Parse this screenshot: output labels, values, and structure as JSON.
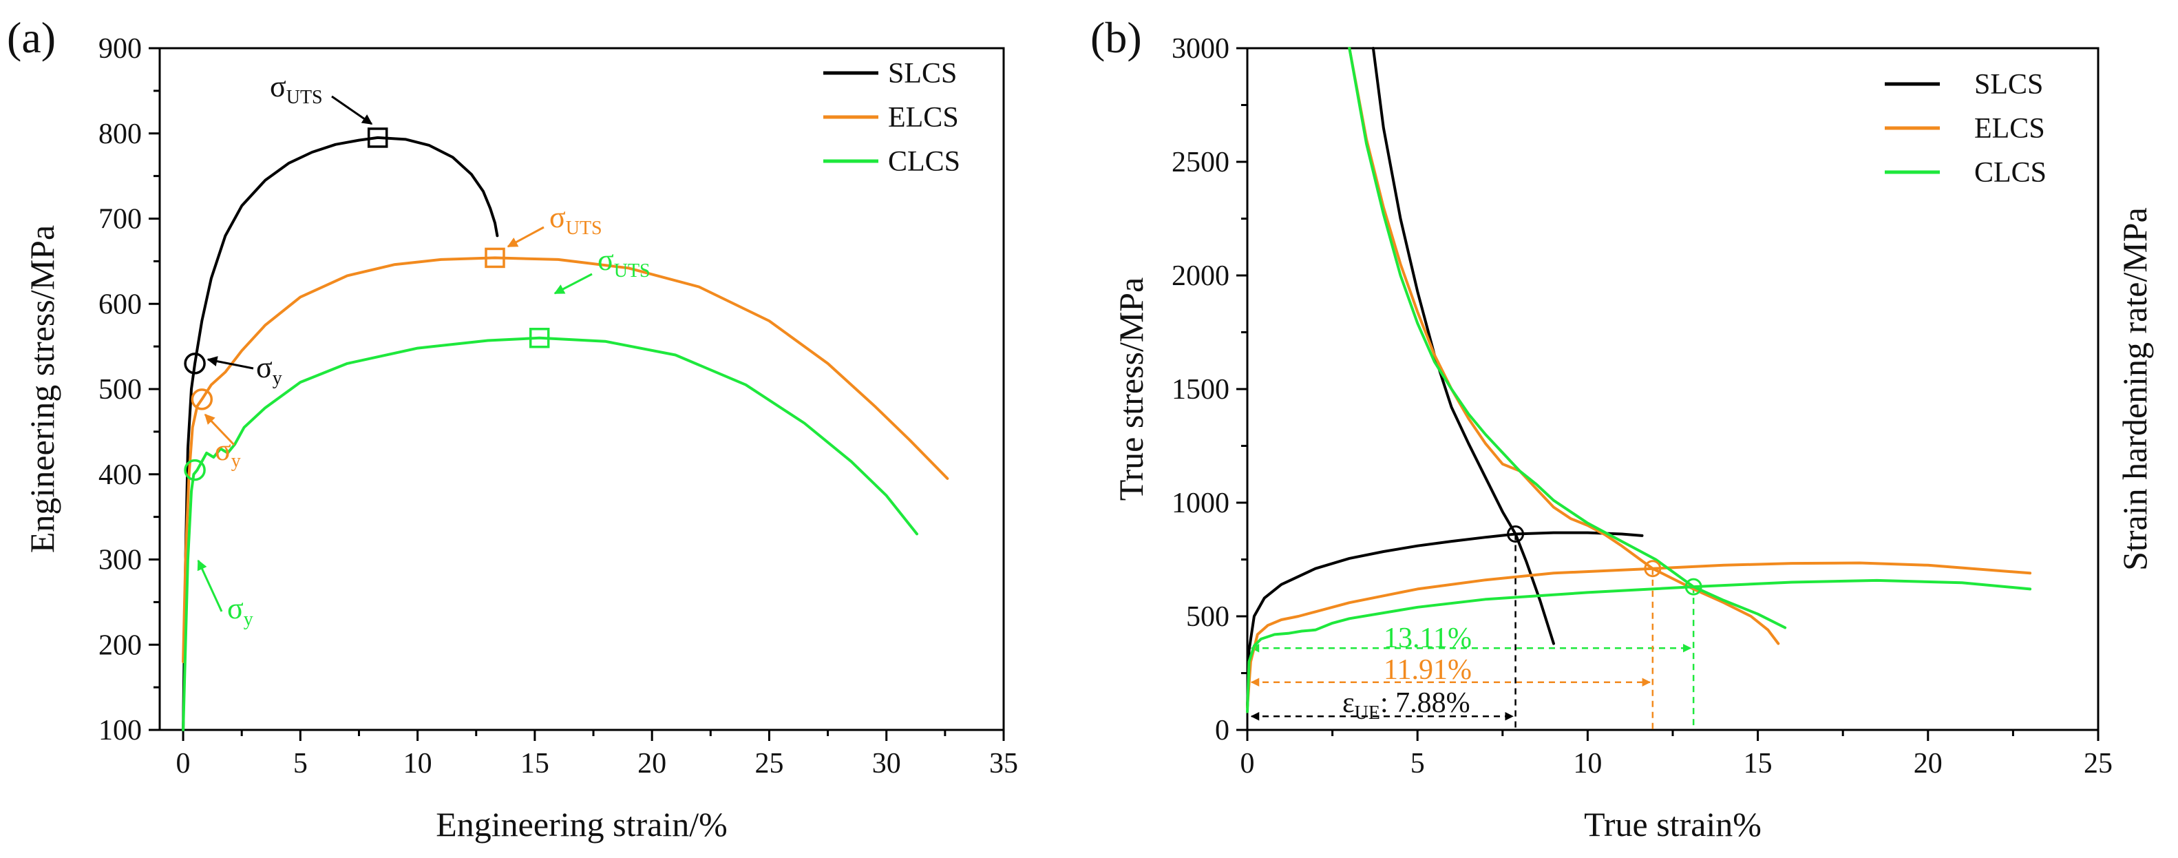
{
  "colors": {
    "SLCS": "#000000",
    "ELCS": "#f28a1e",
    "CLCS": "#1ee83c"
  },
  "sigma": "σ",
  "sub_uts": "UTS",
  "sub_y": "y",
  "chart_data": [
    {
      "panel": "(a)",
      "type": "line",
      "xlabel": "Engineering strain/%",
      "ylabel": "Engineering stress/MPa",
      "xlim": [
        -1,
        35
      ],
      "ylim": [
        100,
        900
      ],
      "xticks": [
        0,
        5,
        10,
        15,
        20,
        25,
        30,
        35
      ],
      "yticks": [
        100,
        200,
        300,
        400,
        500,
        600,
        700,
        800,
        900
      ],
      "legend_position": "top-right",
      "series": [
        {
          "name": "SLCS",
          "x": [
            0,
            0.1,
            0.2,
            0.35,
            0.5,
            0.8,
            1.2,
            1.8,
            2.5,
            3.5,
            4.5,
            5.5,
            6.5,
            7.5,
            8.3,
            9.5,
            10.5,
            11.5,
            12.3,
            12.8,
            13.1,
            13.3,
            13.4
          ],
          "y": [
            100,
            300,
            430,
            500,
            530,
            580,
            630,
            680,
            715,
            745,
            765,
            778,
            787,
            792,
            795,
            793,
            786,
            772,
            752,
            732,
            712,
            695,
            680
          ]
        },
        {
          "name": "ELCS",
          "x": [
            0,
            0.1,
            0.25,
            0.4,
            0.6,
            0.8,
            1.2,
            1.8,
            2.5,
            3.5,
            5,
            7,
            9,
            11,
            13.3,
            16,
            19,
            22,
            25,
            27.5,
            29.5,
            31,
            32.6
          ],
          "y": [
            180,
            300,
            400,
            455,
            480,
            488,
            505,
            520,
            545,
            575,
            608,
            633,
            646,
            652,
            654,
            652,
            642,
            620,
            580,
            530,
            480,
            440,
            395
          ]
        },
        {
          "name": "CLCS",
          "x": [
            0,
            0.2,
            0.35,
            0.45,
            0.6,
            0.8,
            1.0,
            1.3,
            1.6,
            1.9,
            2.2,
            2.6,
            3.5,
            5,
            7,
            10,
            13,
            15.2,
            18,
            21,
            24,
            26.5,
            28.5,
            30,
            31.3
          ],
          "y": [
            100,
            300,
            380,
            400,
            405,
            415,
            425,
            420,
            430,
            425,
            435,
            455,
            478,
            508,
            530,
            548,
            557,
            560,
            556,
            540,
            505,
            460,
            415,
            375,
            330
          ]
        }
      ],
      "markers": [
        {
          "series": "SLCS",
          "shape": "square",
          "x": 8.3,
          "y": 795,
          "label": "σUTS"
        },
        {
          "series": "SLCS",
          "shape": "circle",
          "x": 0.5,
          "y": 530,
          "label": "σy"
        },
        {
          "series": "ELCS",
          "shape": "square",
          "x": 13.3,
          "y": 654,
          "label": "σUTS"
        },
        {
          "series": "ELCS",
          "shape": "circle",
          "x": 0.8,
          "y": 488,
          "label": "σy"
        },
        {
          "series": "CLCS",
          "shape": "square",
          "x": 15.2,
          "y": 560,
          "label": "σUTS"
        },
        {
          "series": "CLCS",
          "shape": "circle",
          "x": 0.5,
          "y": 405,
          "label": "σy"
        }
      ]
    },
    {
      "panel": "(b)",
      "type": "line",
      "xlabel": "True strain%",
      "ylabel": "True stress/MPa",
      "ylabel_right": "Strain hardening rate/MPa",
      "xlim": [
        0,
        25
      ],
      "ylim": [
        0,
        3000
      ],
      "xticks": [
        0,
        5,
        10,
        15,
        20,
        25
      ],
      "yticks": [
        0,
        500,
        1000,
        1500,
        2000,
        2500,
        3000
      ],
      "legend_position": "top-right",
      "series": [
        {
          "name": "SLCS",
          "kind": "true stress",
          "x": [
            0,
            0.05,
            0.2,
            0.5,
            1,
            2,
            3,
            4,
            5,
            6,
            7,
            7.88,
            9,
            10,
            11,
            11.6
          ],
          "y": [
            100,
            350,
            500,
            580,
            640,
            710,
            755,
            785,
            810,
            830,
            848,
            862,
            868,
            868,
            862,
            855
          ]
        },
        {
          "name": "SLCS",
          "kind": "strain hardening rate",
          "x": [
            3.7,
            4.0,
            4.5,
            5.0,
            5.5,
            6.0,
            6.5,
            7.0,
            7.5,
            7.88,
            8.2,
            8.6,
            9.0
          ],
          "y": [
            3000,
            2650,
            2250,
            1930,
            1650,
            1420,
            1260,
            1110,
            960,
            862,
            740,
            570,
            380
          ]
        },
        {
          "name": "ELCS",
          "kind": "true stress",
          "x": [
            0,
            0.1,
            0.3,
            0.6,
            1,
            1.5,
            2,
            3,
            5,
            7,
            9,
            11.91,
            14,
            16,
            18,
            20,
            23
          ],
          "y": [
            100,
            300,
            420,
            460,
            485,
            500,
            520,
            560,
            620,
            660,
            690,
            710,
            725,
            733,
            735,
            725,
            690
          ]
        },
        {
          "name": "ELCS",
          "kind": "strain hardening rate",
          "x": [
            3.0,
            3.5,
            4.0,
            4.5,
            5.0,
            5.5,
            6.0,
            6.5,
            7.0,
            7.5,
            8.0,
            8.5,
            9.0,
            9.5,
            10.0,
            10.5,
            11.0,
            11.91,
            13.11,
            14.0,
            14.8,
            15.3,
            15.6
          ],
          "y": [
            3000,
            2600,
            2300,
            2050,
            1840,
            1650,
            1500,
            1370,
            1260,
            1170,
            1140,
            1060,
            980,
            930,
            900,
            860,
            810,
            710,
            620,
            560,
            500,
            440,
            380
          ]
        },
        {
          "name": "CLCS",
          "kind": "true stress",
          "x": [
            0,
            0.05,
            0.2,
            0.4,
            0.8,
            1.2,
            1.6,
            2,
            2.5,
            3,
            5,
            7,
            10,
            13.11,
            16,
            18.5,
            21,
            23
          ],
          "y": [
            80,
            300,
            370,
            400,
            420,
            425,
            435,
            440,
            470,
            490,
            540,
            575,
            605,
            630,
            650,
            658,
            648,
            620
          ]
        },
        {
          "name": "CLCS",
          "kind": "strain hardening rate",
          "x": [
            3.0,
            3.5,
            4.0,
            4.5,
            5.0,
            5.5,
            6.0,
            6.5,
            7.0,
            7.5,
            8.0,
            8.5,
            9.0,
            9.5,
            10.0,
            11.0,
            12.0,
            13.11,
            14.0,
            15.0,
            15.8
          ],
          "y": [
            3000,
            2580,
            2270,
            2000,
            1790,
            1620,
            1500,
            1390,
            1300,
            1220,
            1140,
            1080,
            1010,
            960,
            910,
            830,
            750,
            630,
            570,
            510,
            450
          ]
        }
      ],
      "intersections": [
        {
          "series": "SLCS",
          "x": 7.88,
          "y": 862
        },
        {
          "series": "ELCS",
          "x": 11.91,
          "y": 710
        },
        {
          "series": "CLCS",
          "x": 13.11,
          "y": 630
        }
      ],
      "uniform_elongation": [
        {
          "series": "CLCS",
          "x": 13.11,
          "arrow_y": 360,
          "label": "13.11%"
        },
        {
          "series": "ELCS",
          "x": 11.91,
          "arrow_y": 210,
          "label": "11.91%"
        },
        {
          "series": "SLCS",
          "x": 7.88,
          "arrow_y": 60,
          "label_symbol": "ε",
          "label_sub": "UE",
          "label_value": ": 7.88%"
        }
      ]
    }
  ]
}
